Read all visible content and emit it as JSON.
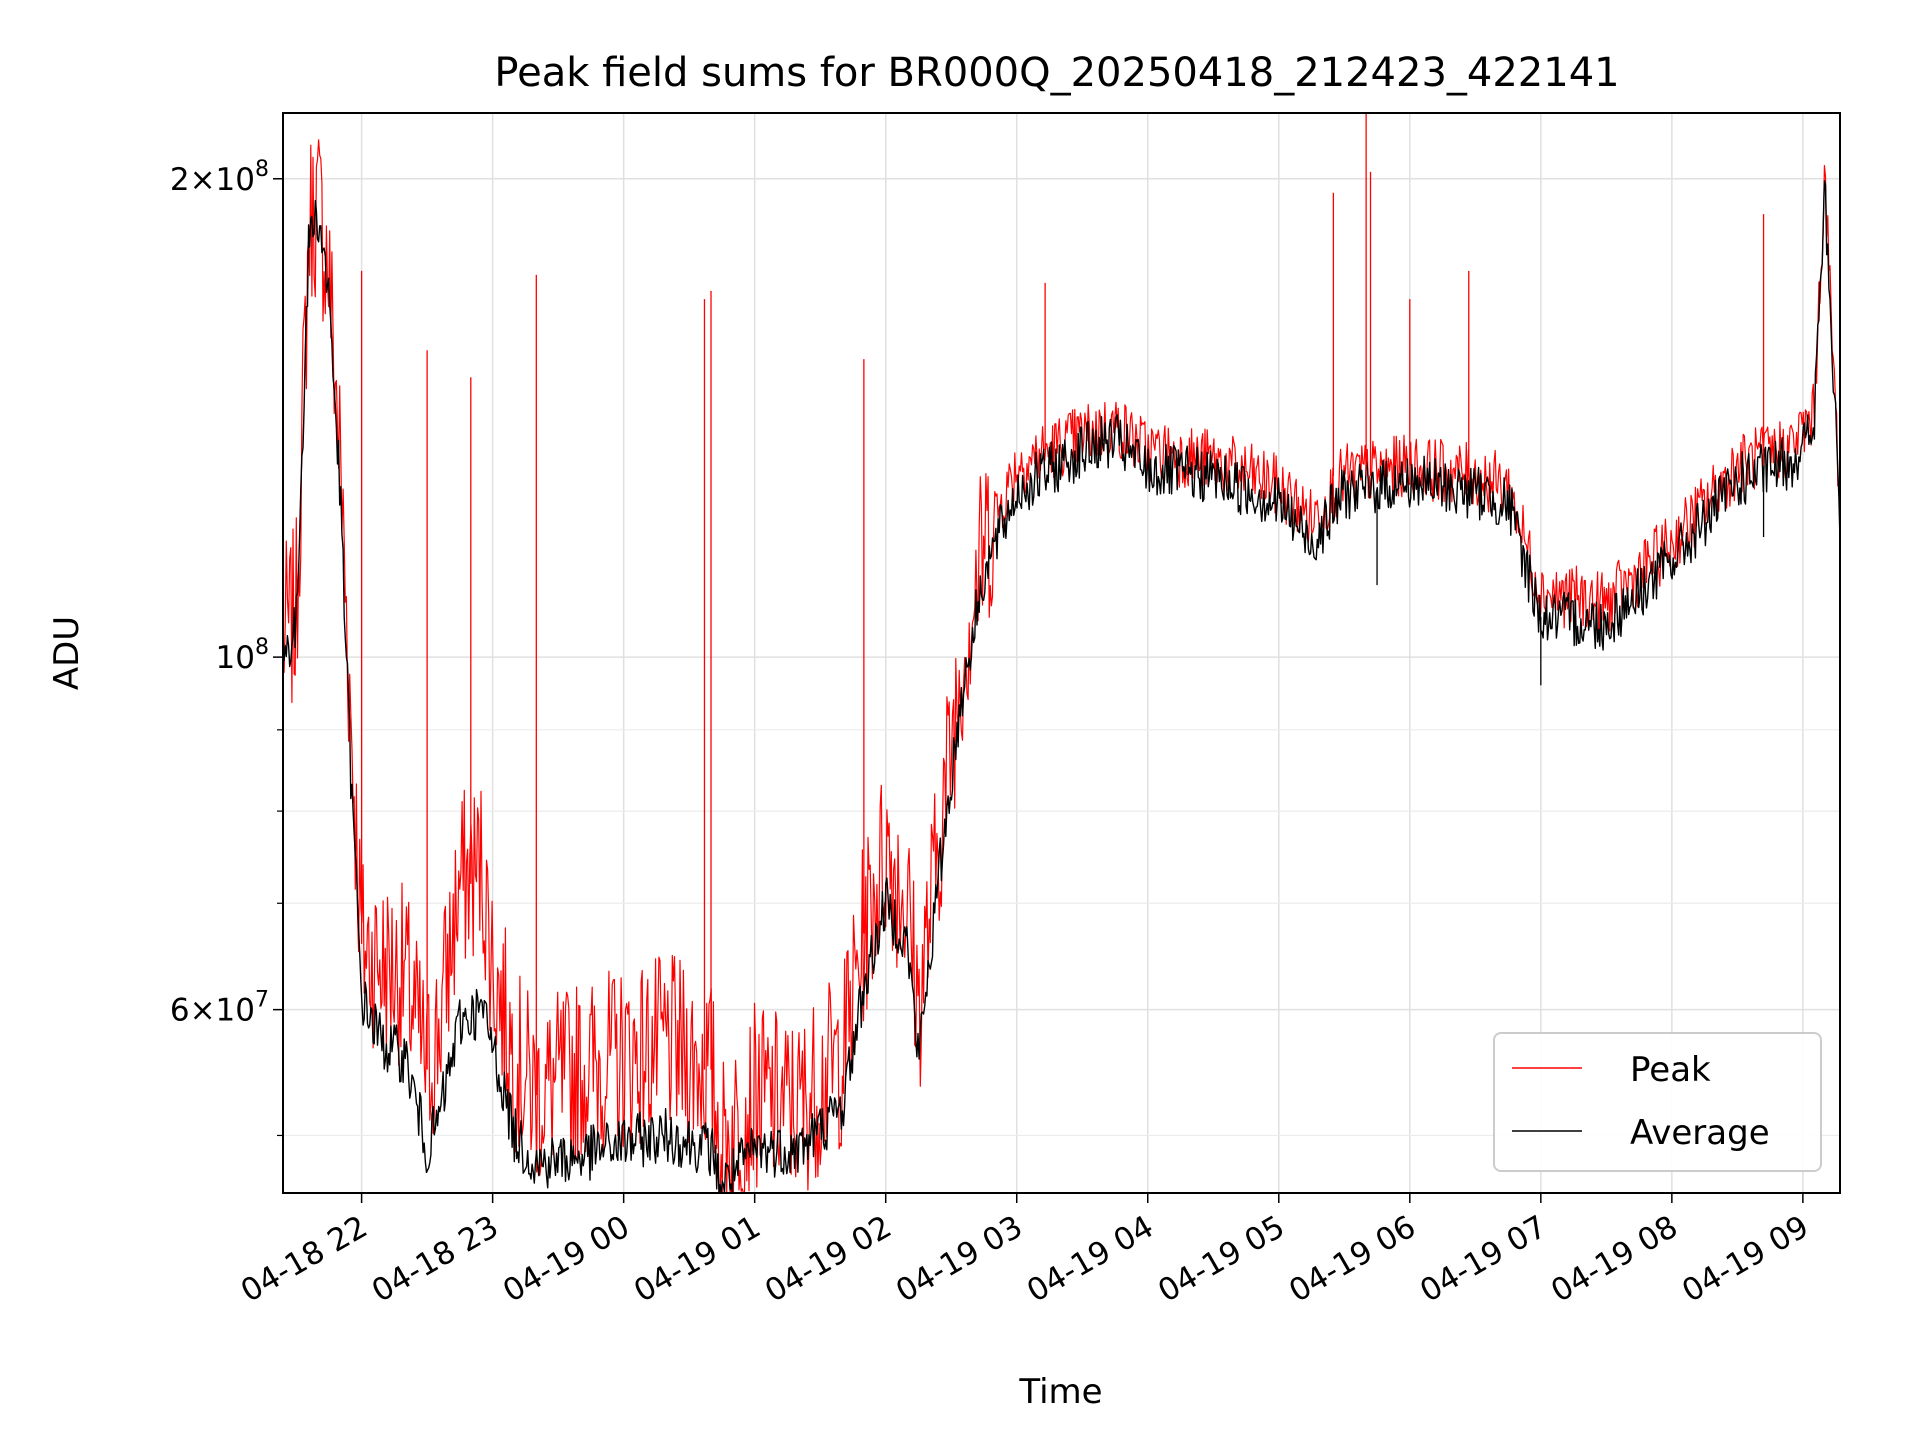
{
  "chart_data": {
    "type": "line",
    "title": "Peak field sums for BR000Q_20250418_212423_422141",
    "xlabel": "Time",
    "ylabel": "ADU",
    "yscale": "log",
    "ylim": [
      46000000,
      220000000
    ],
    "xlim": [
      "04-18 21:24",
      "04-19 09:17"
    ],
    "grid": true,
    "legend_position": "lower-right",
    "x_ticks": [
      "04-18 22",
      "04-18 23",
      "04-19 00",
      "04-19 01",
      "04-19 02",
      "04-19 03",
      "04-19 04",
      "04-19 05",
      "04-19 06",
      "04-19 07",
      "04-19 08",
      "04-19 09"
    ],
    "y_ticks": [
      {
        "value": 200000000,
        "base": "2",
        "exp": "8"
      },
      {
        "value": 100000000,
        "base": "",
        "exp": "8"
      },
      {
        "value": 60000000,
        "base": "6",
        "exp": "7"
      }
    ],
    "x": [
      "04-18 21:24",
      "04-18 21:30",
      "04-18 21:36",
      "04-18 21:40",
      "04-18 21:45",
      "04-18 21:50",
      "04-18 21:55",
      "04-18 22:00",
      "04-18 22:10",
      "04-18 22:20",
      "04-18 22:30",
      "04-18 22:35",
      "04-18 22:45",
      "04-18 22:55",
      "04-18 23:00",
      "04-18 23:10",
      "04-18 23:20",
      "04-18 23:40",
      "04-19 00:00",
      "04-19 00:20",
      "04-19 00:40",
      "04-19 00:45",
      "04-19 01:00",
      "04-19 01:20",
      "04-19 01:40",
      "04-19 01:50",
      "04-19 02:00",
      "04-19 02:10",
      "04-19 02:15",
      "04-19 02:25",
      "04-19 02:35",
      "04-19 02:45",
      "04-19 03:00",
      "04-19 03:15",
      "04-19 03:30",
      "04-19 03:45",
      "04-19 04:00",
      "04-19 04:30",
      "04-19 05:00",
      "04-19 05:15",
      "04-19 05:30",
      "04-19 06:00",
      "04-19 06:30",
      "04-19 06:45",
      "04-19 07:00",
      "04-19 07:30",
      "04-19 08:00",
      "04-19 08:30",
      "04-19 08:55",
      "04-19 09:05",
      "04-19 09:10",
      "04-19 09:17"
    ],
    "series": [
      {
        "name": "Peak",
        "color": "#ff0000",
        "values": [
          103000000,
          106000000,
          188000000,
          193000000,
          175000000,
          135000000,
          92000000,
          66000000,
          64000000,
          63000000,
          55000000,
          58000000,
          72000000,
          74000000,
          64000000,
          56000000,
          53000000,
          55000000,
          56000000,
          57000000,
          55000000,
          49000000,
          53000000,
          52000000,
          56000000,
          67000000,
          76000000,
          70000000,
          60000000,
          78000000,
          100000000,
          118000000,
          132000000,
          135000000,
          138000000,
          140000000,
          135000000,
          133000000,
          128000000,
          122000000,
          130000000,
          132000000,
          130000000,
          128000000,
          110000000,
          108000000,
          118000000,
          132000000,
          136000000,
          142000000,
          200000000,
          125000000
        ]
      },
      {
        "name": "Average",
        "color": "#000000",
        "values": [
          100000000,
          104000000,
          185000000,
          190000000,
          170000000,
          128000000,
          85000000,
          61000000,
          57000000,
          56000000,
          49000000,
          51000000,
          59000000,
          60000000,
          57000000,
          50000000,
          48000000,
          48500000,
          49500000,
          50000000,
          49000000,
          46500000,
          49000000,
          49000000,
          52000000,
          62000000,
          70000000,
          66000000,
          56000000,
          74000000,
          95000000,
          113000000,
          127000000,
          131000000,
          135000000,
          137000000,
          131000000,
          130000000,
          125000000,
          118000000,
          127000000,
          129000000,
          127000000,
          125000000,
          106000000,
          105000000,
          115000000,
          129000000,
          133000000,
          139000000,
          196000000,
          122000000
        ]
      }
    ],
    "spikes": [
      {
        "x": "04-18 22:00",
        "series": "Peak",
        "value": 175000000
      },
      {
        "x": "04-18 22:30",
        "series": "Peak",
        "value": 156000000
      },
      {
        "x": "04-18 22:50",
        "series": "Peak",
        "value": 150000000
      },
      {
        "x": "04-18 23:20",
        "series": "Peak",
        "value": 174000000
      },
      {
        "x": "04-19 00:37",
        "series": "Peak",
        "value": 168000000
      },
      {
        "x": "04-19 00:40",
        "series": "Peak",
        "value": 170000000
      },
      {
        "x": "04-19 01:50",
        "series": "Peak",
        "value": 154000000
      },
      {
        "x": "04-19 03:13",
        "series": "Peak",
        "value": 172000000
      },
      {
        "x": "04-19 05:25",
        "series": "Peak",
        "value": 196000000
      },
      {
        "x": "04-19 05:40",
        "series": "Peak",
        "value": 222000000
      },
      {
        "x": "04-19 05:42",
        "series": "Peak",
        "value": 202000000
      },
      {
        "x": "04-19 06:27",
        "series": "Peak",
        "value": 175000000
      },
      {
        "x": "04-19 06:00",
        "series": "Peak",
        "value": 168000000
      },
      {
        "x": "04-19 08:42",
        "series": "Peak",
        "value": 190000000
      },
      {
        "x": "04-19 07:00",
        "series": "Average",
        "value": 96000000
      },
      {
        "x": "04-19 05:45",
        "series": "Average",
        "value": 111000000
      },
      {
        "x": "04-19 08:42",
        "series": "Average",
        "value": 119000000
      }
    ],
    "legend": [
      {
        "name": "Peak",
        "color": "#ff0000"
      },
      {
        "name": "Average",
        "color": "#000000"
      }
    ]
  }
}
